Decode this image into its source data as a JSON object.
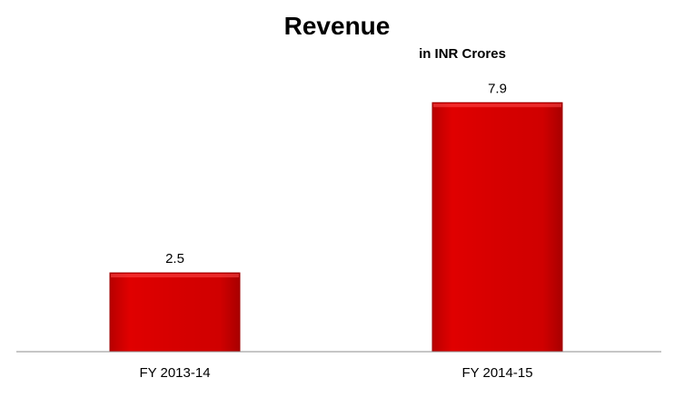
{
  "chart_data": {
    "type": "bar",
    "title": "Revenue",
    "subtitle": "in INR Crores",
    "categories": [
      "FY 2013-14",
      "FY 2014-15"
    ],
    "values": [
      2.5,
      7.9
    ],
    "data_labels": [
      "2.5",
      "7.9"
    ],
    "ylim": [
      0,
      9
    ],
    "grid": false,
    "legend": "none",
    "bar_color": "#d40000",
    "bar_edge_color": "#9e0000",
    "axis_color": "#8c8c8c"
  }
}
